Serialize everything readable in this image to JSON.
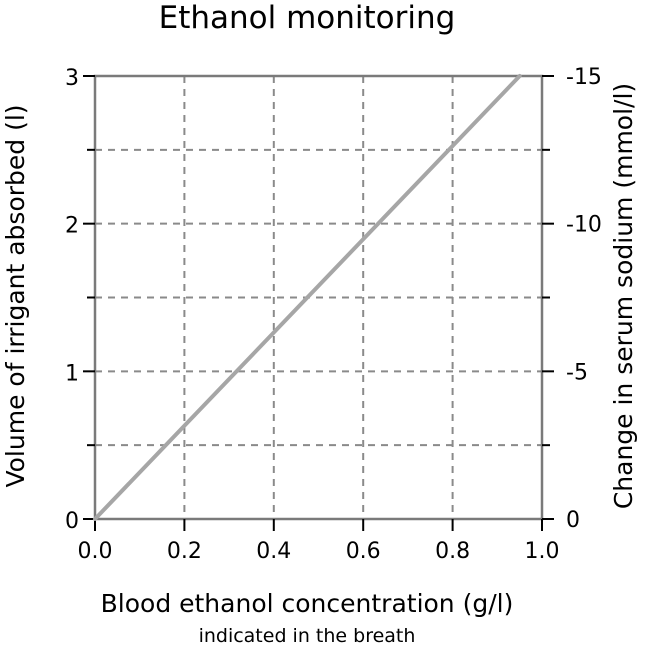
{
  "chart_data": {
    "type": "line",
    "title": "Ethanol monitoring",
    "xlabel": "Blood ethanol concentration (g/l)",
    "xlabel_sub": "indicated in the breath",
    "ylabel": "Volume of irrigant absorbed (l)",
    "y2label": "Change in serum sodium (mmol/l)",
    "xlim": [
      0,
      1.0
    ],
    "ylim": [
      0,
      3
    ],
    "y2lim": [
      0,
      -15
    ],
    "x_ticks": [
      0,
      0.2,
      0.4,
      0.6,
      0.8,
      1.0
    ],
    "x_tick_labels": [
      "0.0",
      "0.2",
      "0.4",
      "0.6",
      "0.8",
      "1.0"
    ],
    "y_ticks": [
      0,
      1,
      2,
      3
    ],
    "y_tick_labels": [
      "0",
      "1",
      "2",
      "3"
    ],
    "y_minor_ticks": [
      0.5,
      1.5,
      2.5
    ],
    "y2_ticks": [
      0,
      -5,
      -10,
      -15
    ],
    "y2_tick_labels": [
      "0",
      "-5",
      "-10",
      "-15"
    ],
    "grid": true,
    "series": [
      {
        "x": [
          0.0,
          0.95
        ],
        "y": [
          0.0,
          3.0
        ],
        "color": "#a6a6a6"
      }
    ]
  }
}
